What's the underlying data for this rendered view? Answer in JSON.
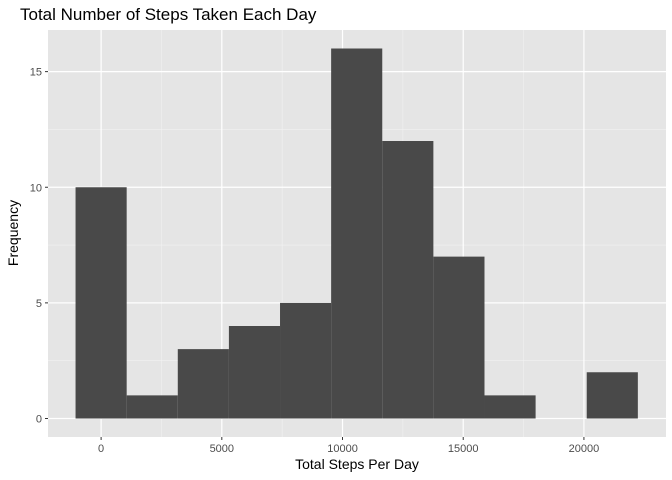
{
  "chart_data": {
    "type": "bar",
    "subtype": "histogram",
    "title": "Total Number of Steps Taken Each Day",
    "xlabel": "Total Steps Per Day",
    "ylabel": "Frequency",
    "bin_width": 2117.5,
    "bins": [
      {
        "x_start": -1058.75,
        "x_end": 1058.75,
        "count": 10
      },
      {
        "x_start": 1058.75,
        "x_end": 3176.25,
        "count": 1
      },
      {
        "x_start": 3176.25,
        "x_end": 5293.75,
        "count": 3
      },
      {
        "x_start": 5293.75,
        "x_end": 7411.25,
        "count": 4
      },
      {
        "x_start": 7411.25,
        "x_end": 9528.75,
        "count": 5
      },
      {
        "x_start": 9528.75,
        "x_end": 11646.25,
        "count": 16
      },
      {
        "x_start": 11646.25,
        "x_end": 13763.75,
        "count": 12
      },
      {
        "x_start": 13763.75,
        "x_end": 15881.25,
        "count": 7
      },
      {
        "x_start": 15881.25,
        "x_end": 17998.75,
        "count": 1
      },
      {
        "x_start": 17998.75,
        "x_end": 20116.25,
        "count": 0
      },
      {
        "x_start": 20116.25,
        "x_end": 22233.75,
        "count": 2
      }
    ],
    "xlim": [
      -2200,
      23400
    ],
    "ylim": [
      -0.8,
      16.8
    ],
    "x_ticks": [
      0,
      5000,
      10000,
      15000,
      20000
    ],
    "x_tick_labels": [
      "0",
      "5000",
      "10000",
      "15000",
      "20000"
    ],
    "y_ticks": [
      0,
      5,
      10,
      15
    ],
    "y_tick_labels": [
      "0",
      "5",
      "10",
      "15"
    ],
    "grid": true,
    "legend": "none",
    "colors": {
      "bar_fill": "#494949",
      "panel_background": "#e5e5e5",
      "grid_major": "#ffffff",
      "grid_minor": "#f2f2f2",
      "tick_label": "#4d4d4d",
      "text": "#000000"
    }
  }
}
